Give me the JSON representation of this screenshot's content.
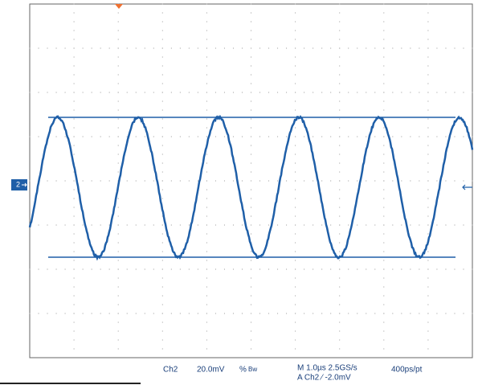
{
  "scope": {
    "channel_marker": "2",
    "status": {
      "channel": "Ch2",
      "scale": "20.0mV",
      "coupling": "%",
      "bandwidth": "Bw",
      "timebase": "M 1.0µs 2.5GS/s",
      "trigger": "A  Ch2  ⁄  -2.0mV",
      "resolution": "400ps/pt"
    }
  }
}
